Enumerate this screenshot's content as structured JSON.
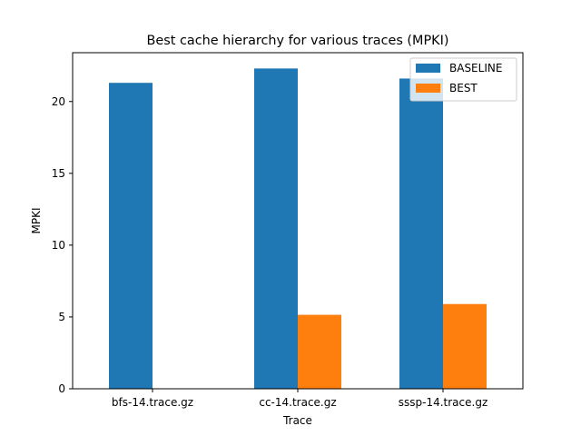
{
  "chart_data": {
    "type": "bar",
    "title": "Best cache hierarchy for various traces (MPKI)",
    "xlabel": "Trace",
    "ylabel": "MPKI",
    "categories": [
      "bfs-14.trace.gz",
      "cc-14.trace.gz",
      "sssp-14.trace.gz"
    ],
    "series": [
      {
        "name": "BASELINE",
        "values": [
          21.3,
          22.3,
          21.6
        ],
        "color": "#1f77b4"
      },
      {
        "name": "BEST",
        "values": [
          0,
          5.15,
          5.9
        ],
        "color": "#ff7f0e"
      }
    ],
    "ylim": [
      0,
      23.4
    ],
    "yticks": [
      0,
      5,
      10,
      15,
      20
    ],
    "grid": false,
    "legend": "top-right"
  }
}
